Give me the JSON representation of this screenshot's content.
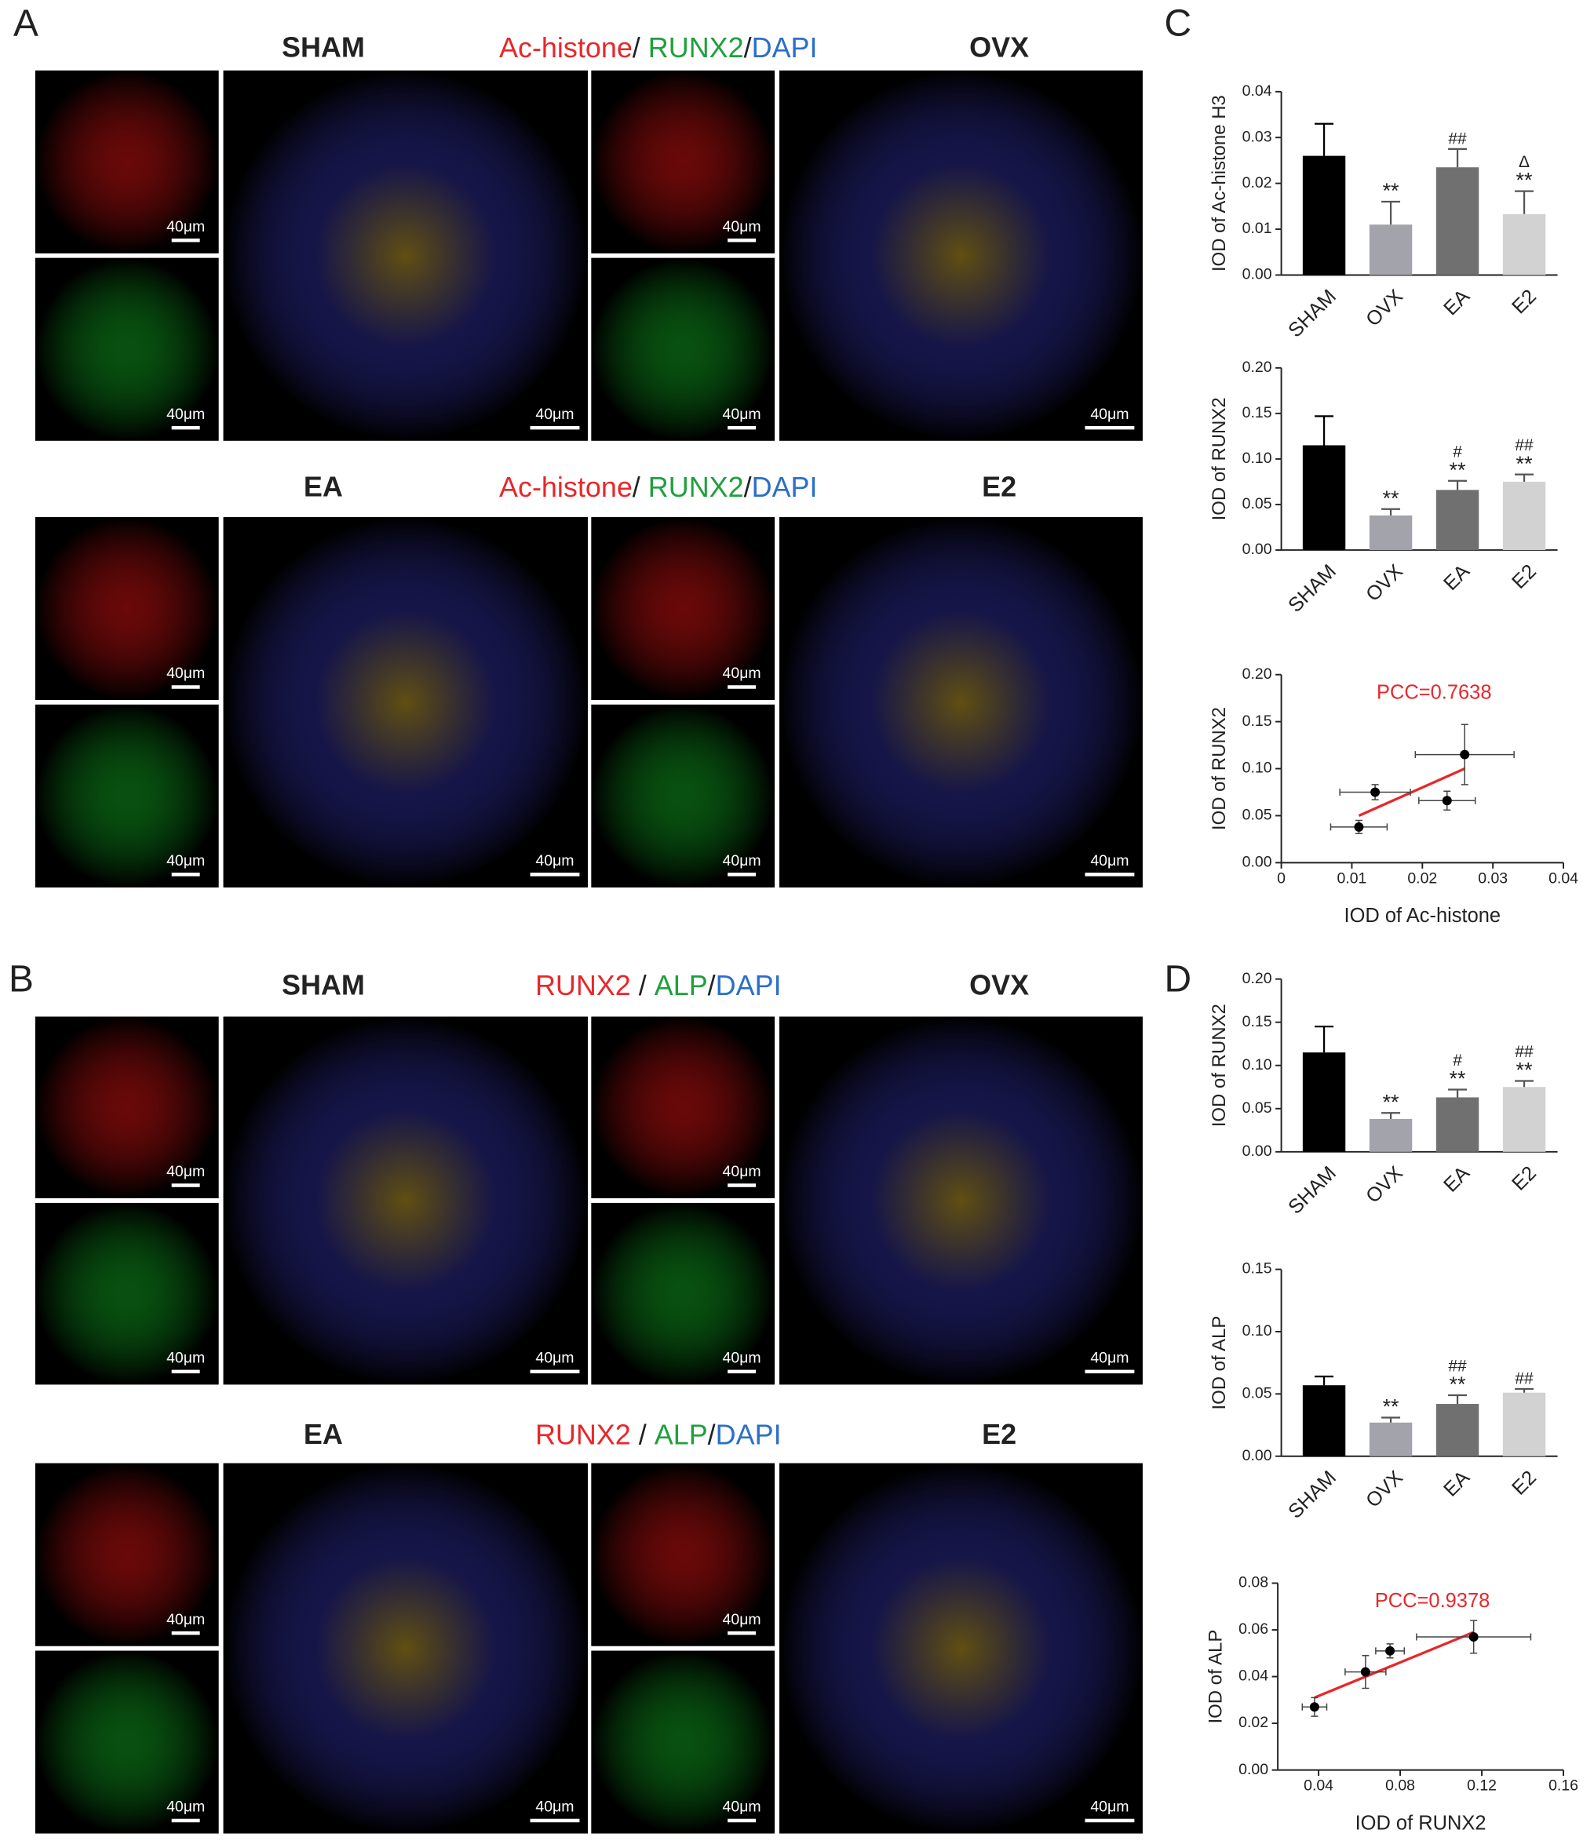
{
  "panels": [
    "A",
    "B",
    "C",
    "D"
  ],
  "rows": [
    {
      "titles": [
        "SHAM",
        "OVX"
      ],
      "stain": [
        {
          "text": "Ac-histone",
          "color": "#e8272b"
        },
        {
          "text": "/ ",
          "color": "#222222"
        },
        {
          "text": "RUNX2",
          "color": "#1fa03c"
        },
        {
          "text": "/",
          "color": "#222222"
        },
        {
          "text": "DAPI",
          "color": "#2b6fc8"
        }
      ],
      "scale_labels": [
        "40μm",
        "40μm",
        "40μm",
        "40μm",
        "40μm",
        "40μm"
      ]
    },
    {
      "titles": [
        "EA",
        "E2"
      ],
      "stain": [
        {
          "text": "Ac-histone",
          "color": "#e8272b"
        },
        {
          "text": "/ ",
          "color": "#222222"
        },
        {
          "text": "RUNX2",
          "color": "#1fa03c"
        },
        {
          "text": "/",
          "color": "#222222"
        },
        {
          "text": "DAPI",
          "color": "#2b6fc8"
        }
      ],
      "scale_labels": [
        "40μm",
        "40μm",
        "40μm",
        "40μm",
        "40μm",
        "40μm"
      ]
    },
    {
      "titles": [
        "SHAM",
        "OVX"
      ],
      "stain": [
        {
          "text": "RUNX2",
          "color": "#e8272b"
        },
        {
          "text": " / ",
          "color": "#222222"
        },
        {
          "text": "ALP",
          "color": "#1fa03c"
        },
        {
          "text": "/",
          "color": "#222222"
        },
        {
          "text": "DAPI",
          "color": "#2b6fc8"
        }
      ],
      "scale_labels": [
        "40μm",
        "40μm",
        "40μm",
        "40μm",
        "40μm",
        "40μm"
      ]
    },
    {
      "titles": [
        "EA",
        "E2"
      ],
      "stain": [
        {
          "text": "RUNX2",
          "color": "#e8272b"
        },
        {
          "text": " / ",
          "color": "#222222"
        },
        {
          "text": "ALP",
          "color": "#1fa03c"
        },
        {
          "text": "/",
          "color": "#222222"
        },
        {
          "text": "DAPI",
          "color": "#2b6fc8"
        }
      ],
      "scale_labels": [
        "40μm",
        "40μm",
        "40μm",
        "40μm",
        "40μm",
        "40μm"
      ]
    }
  ],
  "chart_data": [
    {
      "type": "bar",
      "y_label": "IOD of Ac-histone H3",
      "categories": [
        "SHAM",
        "OVX",
        "EA",
        "E2"
      ],
      "values": [
        0.026,
        0.011,
        0.0235,
        0.0133
      ],
      "errors": [
        0.007,
        0.005,
        0.004,
        0.005
      ],
      "colors": [
        "#000000",
        "#a3a3ab",
        "#707070",
        "#d2d2d2"
      ],
      "annotations": [
        [],
        [
          "**"
        ],
        [
          "##"
        ],
        [
          "Δ",
          "**"
        ]
      ],
      "ylim": [
        0,
        0.04
      ],
      "yticks": [
        {
          "value": 0,
          "label": "0.00"
        },
        0.01,
        0.02,
        0.03,
        0.04
      ]
    },
    {
      "type": "bar",
      "y_label": "IOD of RUNX2",
      "categories": [
        "SHAM",
        "OVX",
        "EA",
        "E2"
      ],
      "values": [
        0.115,
        0.038,
        0.066,
        0.075
      ],
      "errors": [
        0.032,
        0.007,
        0.01,
        0.008
      ],
      "colors": [
        "#000000",
        "#a3a3ab",
        "#707070",
        "#d2d2d2"
      ],
      "annotations": [
        [],
        [
          "**"
        ],
        [
          "#",
          "**"
        ],
        [
          "##",
          "**"
        ]
      ],
      "ylim": [
        0,
        0.2
      ],
      "yticks": [
        {
          "value": 0,
          "label": "0.00"
        },
        0.05,
        {
          "value": 0.1,
          "label": "0.10"
        },
        0.15,
        {
          "value": 0.2,
          "label": "0.20"
        }
      ]
    },
    {
      "type": "scatter",
      "x_label": "IOD of Ac-histone",
      "y_label": "IOD of RUNX2",
      "annotation": "PCC=0.7638",
      "annotation_color": "#e8272b",
      "x": [
        0.026,
        0.011,
        0.0235,
        0.0133
      ],
      "values": [
        0.115,
        0.038,
        0.066,
        0.075
      ],
      "xerr": [
        0.007,
        0.004,
        0.004,
        0.005
      ],
      "yerr": [
        0.032,
        0.007,
        0.01,
        0.008
      ],
      "color": "#000000",
      "fit": {
        "x": [
          0.011,
          0.026
        ],
        "y": [
          0.05,
          0.1
        ],
        "color": "#e8272b"
      },
      "xlim": [
        0,
        0.04
      ],
      "xticks": [
        0,
        0.01,
        0.02,
        0.03,
        0.04
      ],
      "ylim": [
        0,
        0.2
      ],
      "yticks": [
        {
          "value": 0,
          "label": "0.00"
        },
        0.05,
        {
          "value": 0.1,
          "label": "0.10"
        },
        0.15,
        {
          "value": 0.2,
          "label": "0.20"
        }
      ]
    },
    {
      "type": "bar",
      "y_label": "IOD of RUNX2",
      "categories": [
        "SHAM",
        "OVX",
        "EA",
        "E2"
      ],
      "values": [
        0.115,
        0.038,
        0.063,
        0.075
      ],
      "errors": [
        0.03,
        0.007,
        0.009,
        0.007
      ],
      "colors": [
        "#000000",
        "#a3a3ab",
        "#707070",
        "#d2d2d2"
      ],
      "annotations": [
        [],
        [
          "**"
        ],
        [
          "#",
          "**"
        ],
        [
          "##",
          "**"
        ]
      ],
      "ylim": [
        0,
        0.2
      ],
      "yticks": [
        {
          "value": 0,
          "label": "0.00"
        },
        0.05,
        {
          "value": 0.1,
          "label": "0.10"
        },
        0.15,
        {
          "value": 0.2,
          "label": "0.20"
        }
      ]
    },
    {
      "type": "bar",
      "y_label": "IOD of ALP",
      "categories": [
        "SHAM",
        "OVX",
        "EA",
        "E2"
      ],
      "values": [
        0.057,
        0.027,
        0.042,
        0.051
      ],
      "errors": [
        0.007,
        0.004,
        0.007,
        0.003
      ],
      "colors": [
        "#000000",
        "#a3a3ab",
        "#707070",
        "#d2d2d2"
      ],
      "annotations": [
        [],
        [
          "**"
        ],
        [
          "##",
          "**"
        ],
        [
          "##"
        ]
      ],
      "ylim": [
        0,
        0.15
      ],
      "yticks": [
        {
          "value": 0,
          "label": "0.00"
        },
        0.05,
        {
          "value": 0.1,
          "label": "0.10"
        },
        0.15
      ]
    },
    {
      "type": "scatter",
      "x_label": "IOD of RUNX2",
      "y_label": "IOD of ALP",
      "annotation": "PCC=0.9378",
      "annotation_color": "#e8272b",
      "x": [
        0.116,
        0.038,
        0.063,
        0.075
      ],
      "values": [
        0.057,
        0.027,
        0.042,
        0.051
      ],
      "xerr": [
        0.028,
        0.006,
        0.01,
        0.007
      ],
      "yerr": [
        0.007,
        0.004,
        0.007,
        0.003
      ],
      "color": "#000000",
      "fit": {
        "x": [
          0.038,
          0.116
        ],
        "y": [
          0.031,
          0.059
        ],
        "color": "#e8272b"
      },
      "xlim": [
        0.02,
        0.16
      ],
      "xticks": [
        0.04,
        0.08,
        0.12,
        0.16
      ],
      "ylim": [
        0,
        0.08
      ],
      "yticks": [
        {
          "value": 0,
          "label": "0.00"
        },
        0.02,
        0.04,
        0.06,
        0.08
      ]
    }
  ]
}
